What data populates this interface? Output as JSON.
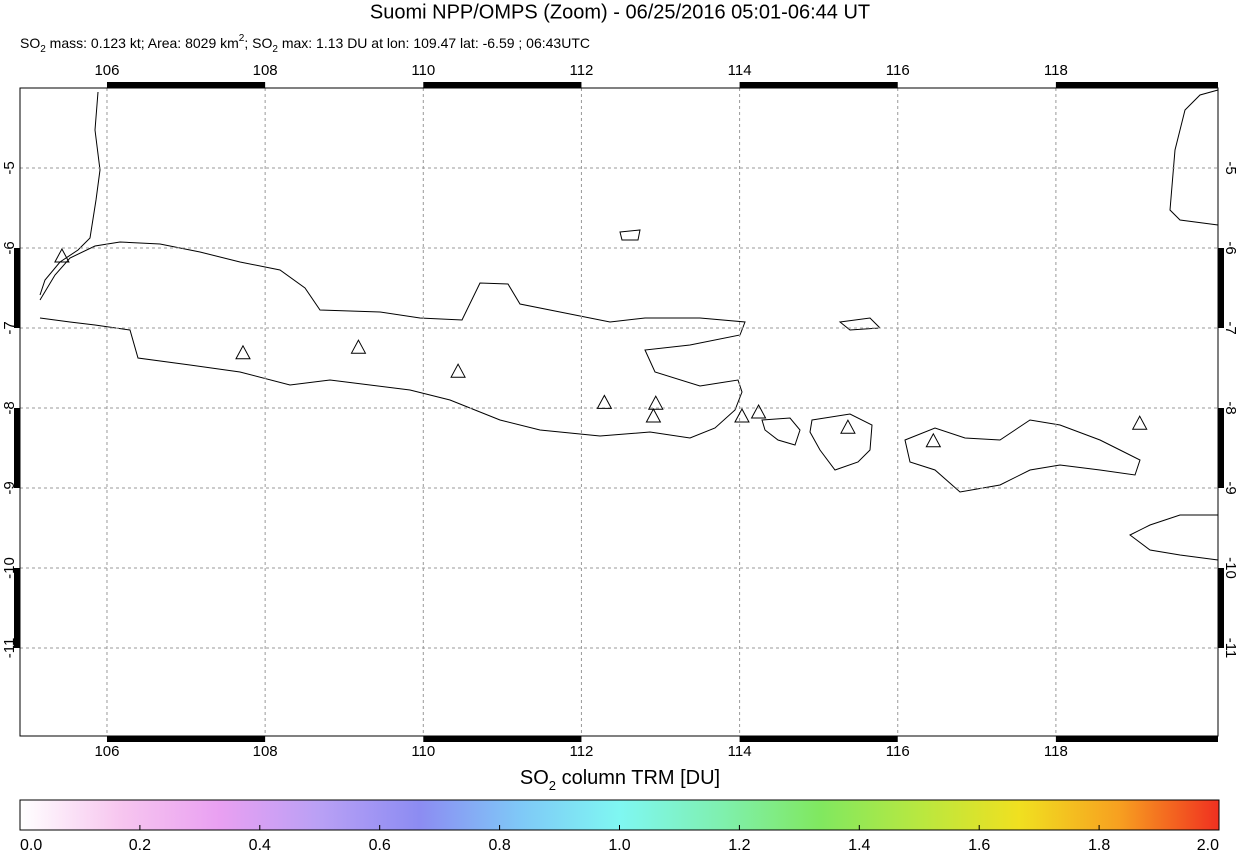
{
  "chart_data": {
    "type": "map",
    "title": "Suomi NPP/OMPS (Zoom) - 06/25/2016 05:01-06:44 UT",
    "subtitle_parts": [
      "SO",
      "2",
      " mass: 0.123 kt; Area: 8029 km",
      "2",
      "; SO",
      "2",
      " max: 1.13 DU at lon: 109.47 lat: -6.59 ; 06:43UTC"
    ],
    "xlim": [
      104.9,
      120.05
    ],
    "ylim": [
      -12.1,
      -4.0
    ],
    "xticks": [
      106,
      108,
      110,
      112,
      114,
      116,
      118
    ],
    "yticks": [
      -5,
      -6,
      -7,
      -8,
      -9,
      -10,
      -11
    ],
    "grid": true,
    "markers": {
      "lon": [
        105.43,
        107.72,
        109.18,
        110.44,
        112.29,
        112.94,
        112.91,
        114.03,
        114.24,
        115.37,
        116.45,
        119.06
      ],
      "lat": [
        -6.1,
        -7.31,
        -7.24,
        -7.54,
        -7.93,
        -7.94,
        -8.1,
        -8.1,
        -8.05,
        -8.24,
        -8.41,
        -8.19
      ]
    },
    "colorbar": {
      "label_parts": [
        "SO",
        "2",
        " column TRM [DU]"
      ],
      "lim": [
        0,
        2
      ],
      "ticks": [
        {
          "value": 0,
          "label": "0.0"
        },
        {
          "value": 0.2,
          "label": "0.2"
        },
        {
          "value": 0.4,
          "label": "0.4"
        },
        {
          "value": 0.6,
          "label": "0.6"
        },
        {
          "value": 0.8,
          "label": "0.8"
        },
        {
          "value": 1,
          "label": "1.0"
        },
        {
          "value": 1.2,
          "label": "1.2"
        },
        {
          "value": 1.4,
          "label": "1.4"
        },
        {
          "value": 1.6,
          "label": "1.6"
        },
        {
          "value": 1.8,
          "label": "1.8"
        },
        {
          "value": 2,
          "label": "2.0"
        }
      ],
      "colors": [
        "#ffffff",
        "#f7c6ef",
        "#e9a0f2",
        "#b9a0f5",
        "#8c8cf2",
        "#7fc8f7",
        "#7ff7f2",
        "#7ff0b0",
        "#80e860",
        "#b8e840",
        "#f0e020",
        "#f7a020",
        "#f03020"
      ]
    }
  }
}
